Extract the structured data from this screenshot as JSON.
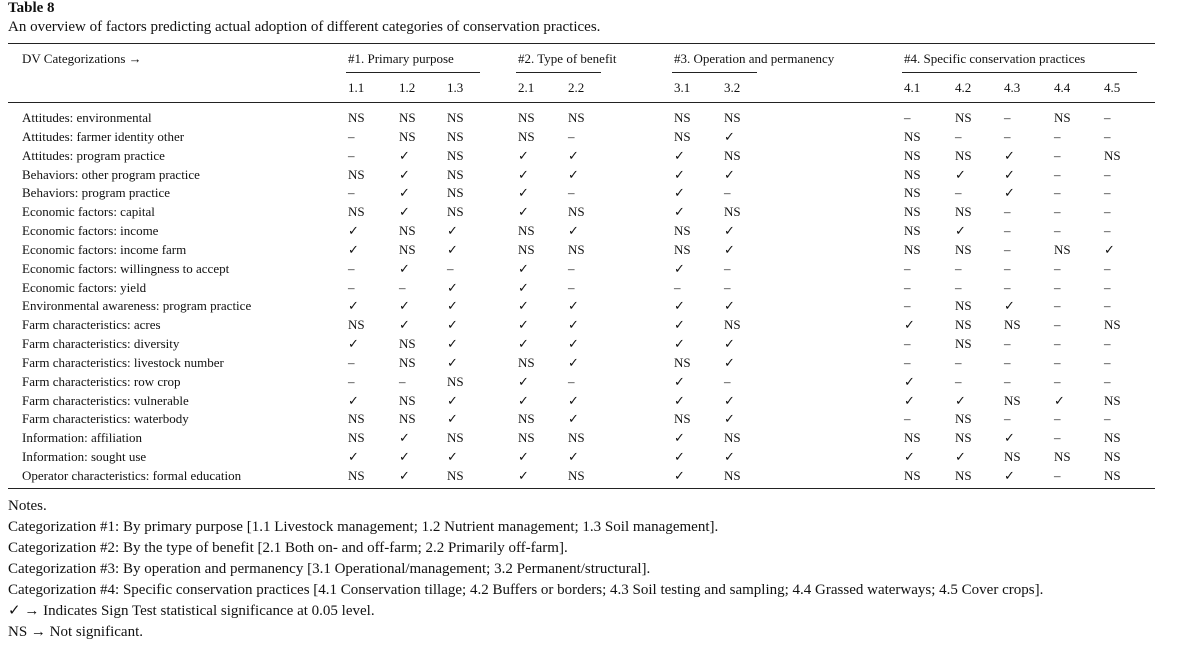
{
  "title": "Table 8",
  "caption": "An overview of factors predicting actual adoption of different categories of conservation practices.",
  "table": {
    "corner": "DV Categorizations →",
    "groups": [
      {
        "label": "#1. Primary purpose",
        "columns": [
          "1.1",
          "1.2",
          "1.3"
        ]
      },
      {
        "label": "#2. Type of benefit",
        "columns": [
          "2.1",
          "2.2"
        ]
      },
      {
        "label": "#3. Operation and permanency",
        "columns": [
          "3.1",
          "3.2"
        ]
      },
      {
        "label": "#4. Specific conservation practices",
        "columns": [
          "4.1",
          "4.2",
          "4.3",
          "4.4",
          "4.5"
        ]
      }
    ],
    "rows": [
      {
        "label": "Attitudes: environmental",
        "cells": [
          "NS",
          "NS",
          "NS",
          "NS",
          "NS",
          "NS",
          "NS",
          "–",
          "NS",
          "–",
          "NS",
          "–"
        ]
      },
      {
        "label": "Attitudes: farmer identity other",
        "cells": [
          "–",
          "NS",
          "NS",
          "NS",
          "–",
          "NS",
          "✓",
          "NS",
          "–",
          "–",
          "–",
          "–"
        ]
      },
      {
        "label": "Attitudes: program practice",
        "cells": [
          "–",
          "✓",
          "NS",
          "✓",
          "✓",
          "✓",
          "NS",
          "NS",
          "NS",
          "✓",
          "–",
          "NS"
        ]
      },
      {
        "label": "Behaviors: other program practice",
        "cells": [
          "NS",
          "✓",
          "NS",
          "✓",
          "✓",
          "✓",
          "✓",
          "NS",
          "✓",
          "✓",
          "–",
          "–"
        ]
      },
      {
        "label": "Behaviors: program practice",
        "cells": [
          "–",
          "✓",
          "NS",
          "✓",
          "–",
          "✓",
          "–",
          "NS",
          "–",
          "✓",
          "–",
          "–"
        ]
      },
      {
        "label": "Economic factors: capital",
        "cells": [
          "NS",
          "✓",
          "NS",
          "✓",
          "NS",
          "✓",
          "NS",
          "NS",
          "NS",
          "–",
          "–",
          "–"
        ]
      },
      {
        "label": "Economic factors: income",
        "cells": [
          "✓",
          "NS",
          "✓",
          "NS",
          "✓",
          "NS",
          "✓",
          "NS",
          "✓",
          "–",
          "–",
          "–"
        ]
      },
      {
        "label": "Economic factors: income farm",
        "cells": [
          "✓",
          "NS",
          "✓",
          "NS",
          "NS",
          "NS",
          "✓",
          "NS",
          "NS",
          "–",
          "NS",
          "✓"
        ]
      },
      {
        "label": "Economic factors: willingness to accept",
        "cells": [
          "–",
          "✓",
          "–",
          "✓",
          "–",
          "✓",
          "–",
          "–",
          "–",
          "–",
          "–",
          "–"
        ]
      },
      {
        "label": "Economic factors: yield",
        "cells": [
          "–",
          "–",
          "✓",
          "✓",
          "–",
          "–",
          "–",
          "–",
          "–",
          "–",
          "–",
          "–"
        ]
      },
      {
        "label": "Environmental awareness: program practice",
        "cells": [
          "✓",
          "✓",
          "✓",
          "✓",
          "✓",
          "✓",
          "✓",
          "–",
          "NS",
          "✓",
          "–",
          "–"
        ]
      },
      {
        "label": "Farm characteristics: acres",
        "cells": [
          "NS",
          "✓",
          "✓",
          "✓",
          "✓",
          "✓",
          "NS",
          "✓",
          "NS",
          "NS",
          "–",
          "NS"
        ]
      },
      {
        "label": "Farm characteristics: diversity",
        "cells": [
          "✓",
          "NS",
          "✓",
          "✓",
          "✓",
          "✓",
          "✓",
          "–",
          "NS",
          "–",
          "–",
          "–"
        ]
      },
      {
        "label": "Farm characteristics: livestock number",
        "cells": [
          "–",
          "NS",
          "✓",
          "NS",
          "✓",
          "NS",
          "✓",
          "–",
          "–",
          "–",
          "–",
          "–"
        ]
      },
      {
        "label": "Farm characteristics: row crop",
        "cells": [
          "–",
          "–",
          "NS",
          "✓",
          "–",
          "✓",
          "–",
          "✓",
          "–",
          "–",
          "–",
          "–"
        ]
      },
      {
        "label": "Farm characteristics: vulnerable",
        "cells": [
          "✓",
          "NS",
          "✓",
          "✓",
          "✓",
          "✓",
          "✓",
          "✓",
          "✓",
          "NS",
          "✓",
          "NS"
        ]
      },
      {
        "label": "Farm characteristics: waterbody",
        "cells": [
          "NS",
          "NS",
          "✓",
          "NS",
          "✓",
          "NS",
          "✓",
          "–",
          "NS",
          "–",
          "–",
          "–"
        ]
      },
      {
        "label": "Information: affiliation",
        "cells": [
          "NS",
          "✓",
          "NS",
          "NS",
          "NS",
          "✓",
          "NS",
          "NS",
          "NS",
          "✓",
          "–",
          "NS"
        ]
      },
      {
        "label": "Information: sought use",
        "cells": [
          "✓",
          "✓",
          "✓",
          "✓",
          "✓",
          "✓",
          "✓",
          "✓",
          "✓",
          "NS",
          "NS",
          "NS"
        ]
      },
      {
        "label": "Operator characteristics: formal education",
        "cells": [
          "NS",
          "✓",
          "NS",
          "✓",
          "NS",
          "✓",
          "NS",
          "NS",
          "NS",
          "✓",
          "–",
          "NS"
        ]
      }
    ]
  },
  "notes": {
    "heading": "Notes.",
    "lines": [
      "Categorization #1: By primary purpose [1.1 Livestock management; 1.2 Nutrient management; 1.3 Soil management].",
      "Categorization #2: By the type of benefit [2.1 Both on- and off-farm; 2.2 Primarily off-farm].",
      "Categorization #3: By operation and permanency [3.1 Operational/management; 3.2 Permanent/structural].",
      "Categorization #4: Specific conservation practices [4.1 Conservation tillage; 4.2 Buffers or borders; 4.3 Soil testing and sampling; 4.4 Grassed waterways; 4.5 Cover crops].",
      "✓ → Indicates Sign Test statistical significance at 0.05 level.",
      "NS → Not significant."
    ]
  }
}
